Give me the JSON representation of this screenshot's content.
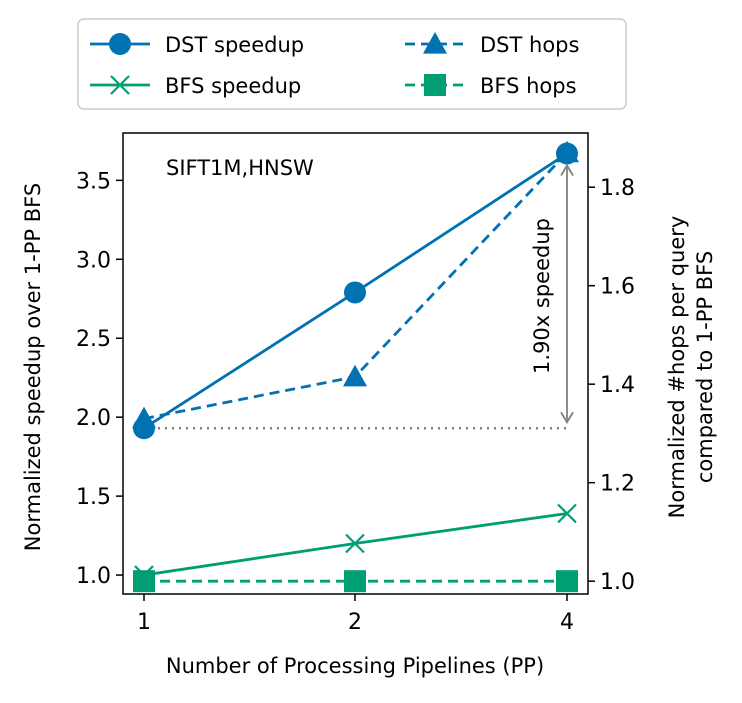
{
  "chart_data": {
    "type": "line",
    "annotation_text": "SIFT1M,HNSW",
    "speedup_annotation": "1.90x speedup",
    "xlabel": "Number of Processing Pipelines (PP)",
    "ylabel_left": "Normalized speedup over 1-PP BFS",
    "ylabel_right_line1": "Normalized #hops per query",
    "ylabel_right_line2": "compared to 1-PP BFS",
    "categories": [
      "1",
      "2",
      "4"
    ],
    "left_axis": {
      "ylim": [
        0.88,
        3.8
      ],
      "ticks": [
        1.0,
        1.5,
        2.0,
        2.5,
        3.0,
        3.5
      ],
      "tick_labels": [
        "1.0",
        "1.5",
        "2.0",
        "2.5",
        "3.0",
        "3.5"
      ]
    },
    "right_axis": {
      "ylim": [
        0.974,
        1.91
      ],
      "ticks": [
        1.0,
        1.2,
        1.4,
        1.6,
        1.8
      ],
      "tick_labels": [
        "1.0",
        "1.2",
        "1.4",
        "1.6",
        "1.8"
      ]
    },
    "series": [
      {
        "name": "DST speedup",
        "axis": "left",
        "values": [
          1.93,
          2.79,
          3.67
        ],
        "color": "#0072b2",
        "marker": "circle",
        "dash": "solid"
      },
      {
        "name": "BFS speedup",
        "axis": "left",
        "values": [
          1.0,
          1.2,
          1.39
        ],
        "color": "#009e73",
        "marker": "x",
        "dash": "solid"
      },
      {
        "name": "DST hops",
        "axis": "right",
        "values": [
          1.33,
          1.415,
          1.87
        ],
        "color": "#0072b2",
        "marker": "triangle",
        "dash": "dashed"
      },
      {
        "name": "BFS hops",
        "axis": "right",
        "values": [
          1.0,
          1.0,
          1.0
        ],
        "color": "#009e73",
        "marker": "square",
        "dash": "dashed"
      }
    ],
    "reference_line": {
      "axis": "left",
      "value": 1.93,
      "color": "#808080",
      "style": "dotted"
    },
    "legend": {
      "placement": "top",
      "columns": 2
    },
    "grid": false
  }
}
